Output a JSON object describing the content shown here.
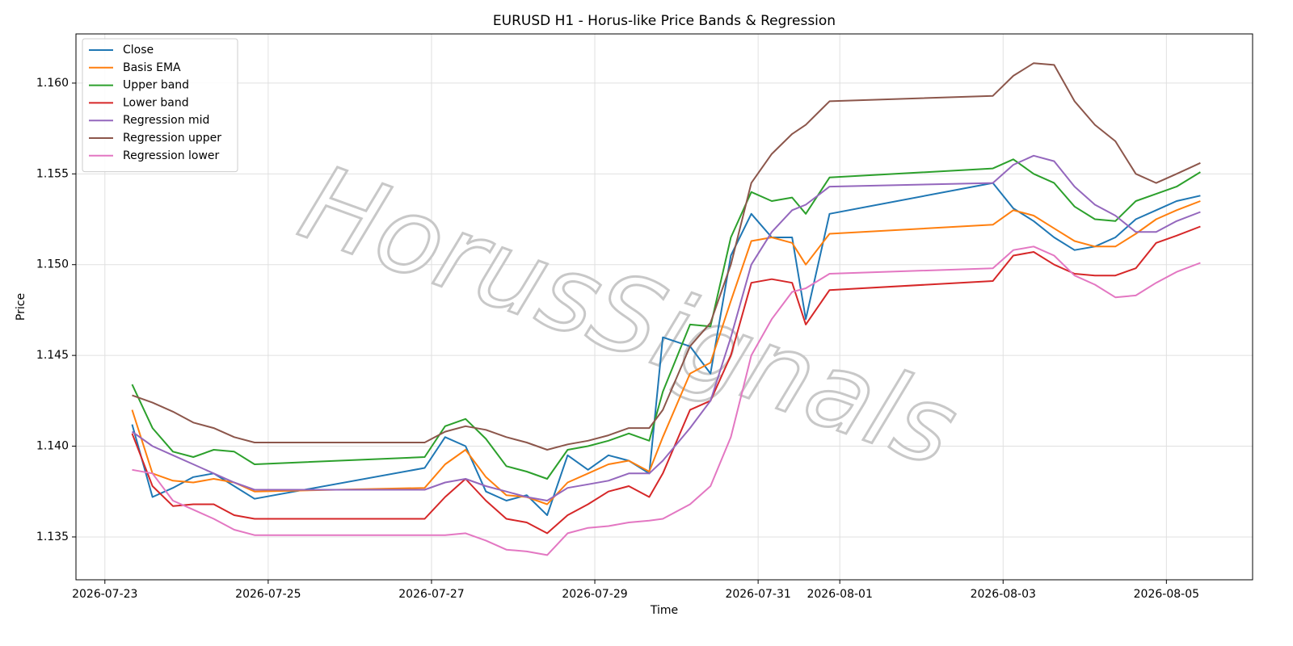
{
  "chart_data": {
    "type": "line",
    "title": "EURUSD H1 - Horus-like Price Bands & Regression",
    "xlabel": "Time",
    "ylabel": "Price",
    "watermark": "HorusSignals",
    "legend": "upper left",
    "grid": true,
    "xlim": [
      "2026-07-22T15:30",
      "2026-08-06T01:20"
    ],
    "xticks": [
      "2026-07-23",
      "2026-07-25",
      "2026-07-27",
      "2026-07-29",
      "2026-07-31",
      "2026-08-01",
      "2026-08-03",
      "2026-08-05"
    ],
    "ylim": [
      1.13264,
      1.16271
    ],
    "yticks": [
      {
        "value": 1.135,
        "label": "1.135"
      },
      {
        "value": 1.14,
        "label": "1.140"
      },
      {
        "value": 1.145,
        "label": "1.145"
      },
      {
        "value": 1.15,
        "label": "1.150"
      },
      {
        "value": 1.155,
        "label": "1.155"
      },
      {
        "value": 1.16,
        "label": "1.160"
      }
    ],
    "x": [
      "2026-07-23T08:00",
      "2026-07-23T14:00",
      "2026-07-23T20:00",
      "2026-07-24T02:00",
      "2026-07-24T08:00",
      "2026-07-24T14:00",
      "2026-07-24T20:00",
      "2026-07-26T22:00",
      "2026-07-27T04:00",
      "2026-07-27T10:00",
      "2026-07-27T16:00",
      "2026-07-27T22:00",
      "2026-07-28T04:00",
      "2026-07-28T10:00",
      "2026-07-28T16:00",
      "2026-07-28T22:00",
      "2026-07-29T04:00",
      "2026-07-29T10:00",
      "2026-07-29T16:00",
      "2026-07-29T20:00",
      "2026-07-30T04:00",
      "2026-07-30T10:00",
      "2026-07-30T16:00",
      "2026-07-30T22:00",
      "2026-07-31T04:00",
      "2026-07-31T10:00",
      "2026-07-31T14:00",
      "2026-07-31T21:00",
      "2026-08-02T21:00",
      "2026-08-03T03:00",
      "2026-08-03T09:00",
      "2026-08-03T15:00",
      "2026-08-03T21:00",
      "2026-08-04T03:00",
      "2026-08-04T09:00",
      "2026-08-04T15:00",
      "2026-08-04T21:00",
      "2026-08-05T03:00",
      "2026-08-05T10:00"
    ],
    "series": [
      {
        "name": "Close",
        "color": "#1f77b4",
        "values": [
          1.1412,
          1.1372,
          1.1377,
          1.1383,
          1.1385,
          1.1378,
          1.1371,
          1.1388,
          1.1405,
          1.14,
          1.1375,
          1.137,
          1.1373,
          1.1362,
          1.1395,
          1.1387,
          1.1395,
          1.1392,
          1.1385,
          1.146,
          1.1455,
          1.144,
          1.1505,
          1.1528,
          1.1515,
          1.1515,
          1.147,
          1.1528,
          1.1545,
          1.1531,
          1.1524,
          1.1515,
          1.1508,
          1.151,
          1.1515,
          1.1525,
          1.153,
          1.1535,
          1.1538
        ]
      },
      {
        "name": "Basis EMA",
        "color": "#ff7f0e",
        "values": [
          1.142,
          1.1385,
          1.1381,
          1.138,
          1.1382,
          1.138,
          1.1375,
          1.1377,
          1.139,
          1.1398,
          1.1383,
          1.1373,
          1.1372,
          1.1368,
          1.138,
          1.1385,
          1.139,
          1.1392,
          1.1386,
          1.1405,
          1.144,
          1.1446,
          1.148,
          1.1513,
          1.1515,
          1.1512,
          1.15,
          1.1517,
          1.1522,
          1.153,
          1.1527,
          1.152,
          1.1513,
          1.151,
          1.151,
          1.1517,
          1.1525,
          1.153,
          1.1535
        ]
      },
      {
        "name": "Upper band",
        "color": "#2ca02c",
        "values": [
          1.1434,
          1.141,
          1.1397,
          1.1394,
          1.1398,
          1.1397,
          1.139,
          1.1394,
          1.1411,
          1.1415,
          1.1404,
          1.1389,
          1.1386,
          1.1382,
          1.1398,
          1.14,
          1.1403,
          1.1407,
          1.1403,
          1.143,
          1.1467,
          1.1466,
          1.1515,
          1.154,
          1.1535,
          1.1537,
          1.1528,
          1.1548,
          1.1553,
          1.1558,
          1.155,
          1.1545,
          1.1532,
          1.1525,
          1.1524,
          1.1535,
          1.1539,
          1.1543,
          1.1551
        ]
      },
      {
        "name": "Lower band",
        "color": "#d62728",
        "values": [
          1.1407,
          1.1378,
          1.1367,
          1.1368,
          1.1368,
          1.1362,
          1.136,
          1.136,
          1.1372,
          1.1382,
          1.137,
          1.136,
          1.1358,
          1.1352,
          1.1362,
          1.1368,
          1.1375,
          1.1378,
          1.1372,
          1.1385,
          1.142,
          1.1425,
          1.145,
          1.149,
          1.1492,
          1.149,
          1.1467,
          1.1486,
          1.1491,
          1.1505,
          1.1507,
          1.15,
          1.1495,
          1.1494,
          1.1494,
          1.1498,
          1.1512,
          1.1516,
          1.1521
        ]
      },
      {
        "name": "Regression mid",
        "color": "#9467bd",
        "values": [
          1.1408,
          1.14,
          1.1395,
          1.139,
          1.1385,
          1.138,
          1.1376,
          1.1376,
          1.138,
          1.1382,
          1.1378,
          1.1375,
          1.1372,
          1.137,
          1.1377,
          1.1379,
          1.1381,
          1.1385,
          1.1385,
          1.1392,
          1.141,
          1.1425,
          1.146,
          1.15,
          1.1518,
          1.153,
          1.1533,
          1.1543,
          1.1545,
          1.1555,
          1.156,
          1.1557,
          1.1543,
          1.1533,
          1.1527,
          1.1518,
          1.1518,
          1.1524,
          1.1529
        ]
      },
      {
        "name": "Regression upper",
        "color": "#8c564b",
        "values": [
          1.1428,
          1.1424,
          1.1419,
          1.1413,
          1.141,
          1.1405,
          1.1402,
          1.1402,
          1.1408,
          1.1411,
          1.1409,
          1.1405,
          1.1402,
          1.1398,
          1.1401,
          1.1403,
          1.1406,
          1.141,
          1.141,
          1.142,
          1.1455,
          1.1468,
          1.15,
          1.1545,
          1.1561,
          1.1572,
          1.1577,
          1.159,
          1.1593,
          1.1604,
          1.1611,
          1.161,
          1.159,
          1.1577,
          1.1568,
          1.155,
          1.1545,
          1.155,
          1.1556
        ]
      },
      {
        "name": "Regression lower",
        "color": "#e377c2",
        "values": [
          1.1387,
          1.1385,
          1.137,
          1.1365,
          1.136,
          1.1354,
          1.1351,
          1.1351,
          1.1351,
          1.1352,
          1.1348,
          1.1343,
          1.1342,
          1.134,
          1.1352,
          1.1355,
          1.1356,
          1.1358,
          1.1359,
          1.136,
          1.1368,
          1.1378,
          1.1405,
          1.145,
          1.147,
          1.1485,
          1.1487,
          1.1495,
          1.1498,
          1.1508,
          1.151,
          1.1505,
          1.1494,
          1.1489,
          1.1482,
          1.1483,
          1.149,
          1.1496,
          1.1501
        ]
      }
    ]
  }
}
